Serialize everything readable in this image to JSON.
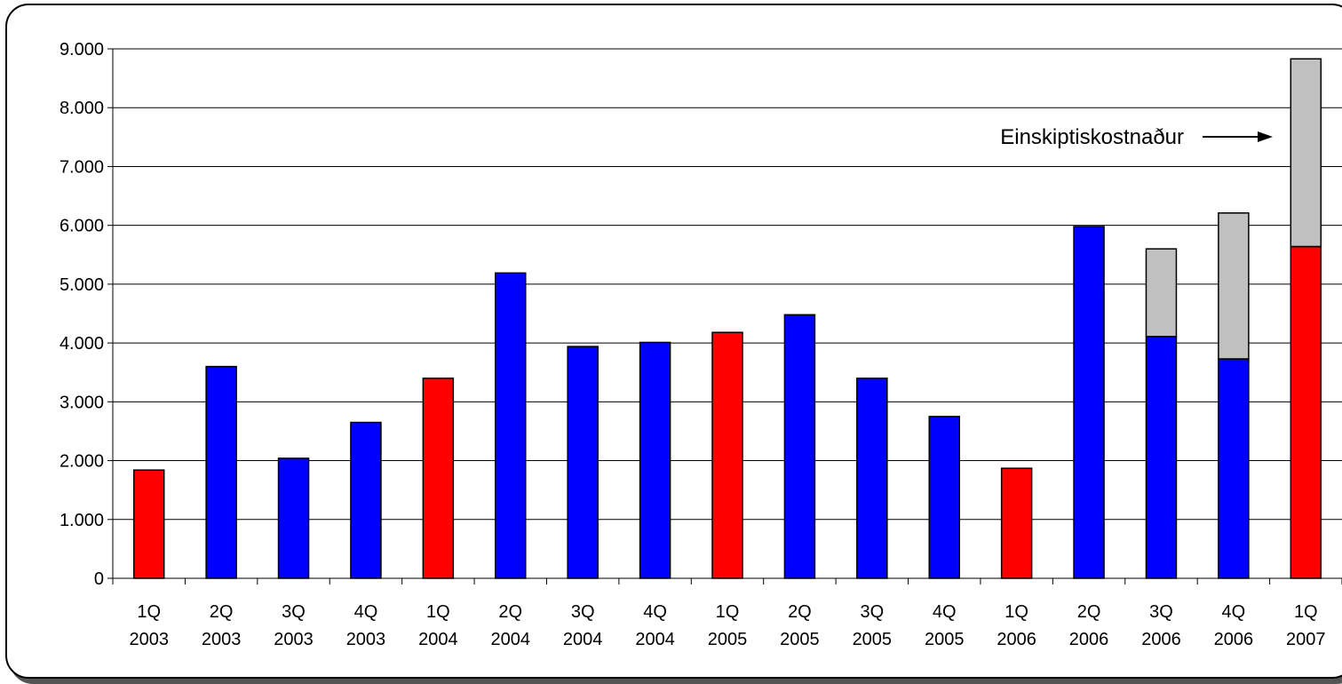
{
  "chart_data": {
    "type": "bar",
    "stacked": true,
    "categories": [
      [
        "1Q",
        "2003"
      ],
      [
        "2Q",
        "2003"
      ],
      [
        "3Q",
        "2003"
      ],
      [
        "4Q",
        "2003"
      ],
      [
        "1Q",
        "2004"
      ],
      [
        "2Q",
        "2004"
      ],
      [
        "3Q",
        "2004"
      ],
      [
        "4Q",
        "2004"
      ],
      [
        "1Q",
        "2005"
      ],
      [
        "2Q",
        "2005"
      ],
      [
        "3Q",
        "2005"
      ],
      [
        "4Q",
        "2005"
      ],
      [
        "1Q",
        "2006"
      ],
      [
        "2Q",
        "2006"
      ],
      [
        "3Q",
        "2006"
      ],
      [
        "4Q",
        "2006"
      ],
      [
        "1Q",
        "2007"
      ]
    ],
    "series": [
      {
        "values": [
          1840,
          3600,
          2040,
          2650,
          3400,
          5190,
          3940,
          4010,
          4180,
          4480,
          3400,
          2750,
          1870,
          5980,
          4110,
          3730,
          5640
        ],
        "colors": [
          "#ff0000",
          "#0000ff",
          "#0000ff",
          "#0000ff",
          "#ff0000",
          "#0000ff",
          "#0000ff",
          "#0000ff",
          "#ff0000",
          "#0000ff",
          "#0000ff",
          "#0000ff",
          "#ff0000",
          "#0000ff",
          "#0000ff",
          "#0000ff",
          "#ff0000"
        ]
      },
      {
        "name": "Einskiptiskostnaður",
        "values": [
          0,
          0,
          0,
          0,
          0,
          0,
          0,
          0,
          0,
          0,
          0,
          0,
          0,
          0,
          1490,
          2480,
          3190
        ],
        "color": "#c0c0c0"
      }
    ],
    "annotation": {
      "text": "Einskiptiskostnaður",
      "points_to": "1Q 2007"
    },
    "ylim": [
      0,
      9000
    ],
    "yticks": [
      0,
      1000,
      2000,
      3000,
      4000,
      5000,
      6000,
      7000,
      8000,
      9000
    ],
    "ytick_labels": [
      "0",
      "1.000",
      "2.000",
      "3.000",
      "4.000",
      "5.000",
      "6.000",
      "7.000",
      "8.000",
      "9.000"
    ],
    "grid": true,
    "legend": "none",
    "title": "",
    "xlabel": "",
    "ylabel": ""
  }
}
